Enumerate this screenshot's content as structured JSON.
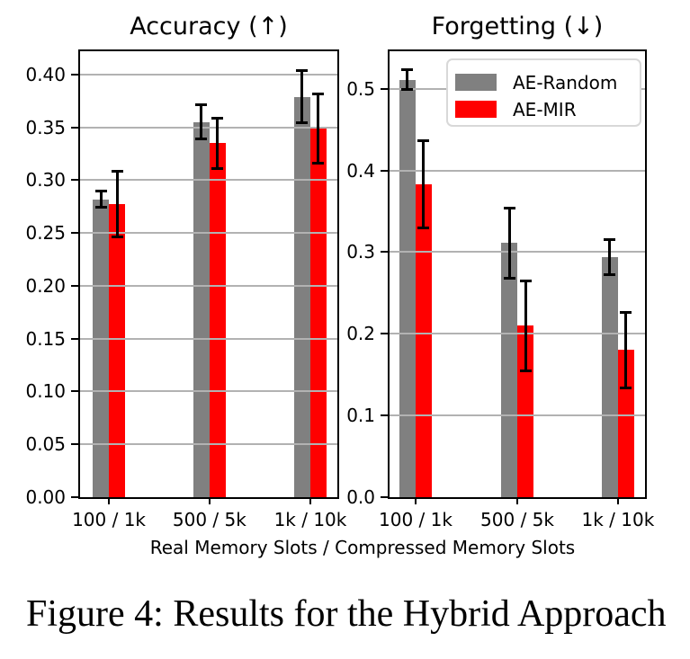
{
  "figure_caption": "Figure 4: Results for the Hybrid Approach",
  "xlabel": "Real Memory Slots / Compressed Memory Slots",
  "colors": {
    "ae_random": "#808080",
    "ae_mir": "#ff0000",
    "grid": "#b2b2b2",
    "error_bar": "#000000",
    "legend_border": "#d8d8d8"
  },
  "chart_data": [
    {
      "type": "bar",
      "title": "Accuracy (↑)",
      "categories": [
        "100 / 1k",
        "500 / 5k",
        "1k / 10k"
      ],
      "series": [
        {
          "name": "AE-Random",
          "color": "#808080",
          "values": [
            0.282,
            0.355,
            0.379
          ],
          "error": [
            0.008,
            0.016,
            0.025
          ]
        },
        {
          "name": "AE-MIR",
          "color": "#ff0000",
          "values": [
            0.277,
            0.335,
            0.349
          ],
          "error": [
            0.031,
            0.024,
            0.033
          ]
        }
      ],
      "ylim": [
        0,
        0.422
      ],
      "ytick_labels": [
        "0.00",
        "0.05",
        "0.10",
        "0.15",
        "0.20",
        "0.25",
        "0.30",
        "0.35",
        "0.40"
      ],
      "grid": true,
      "legend": null
    },
    {
      "type": "bar",
      "title": "Forgetting (↓)",
      "categories": [
        "100 / 1k",
        "500 / 5k",
        "1k / 10k"
      ],
      "series": [
        {
          "name": "AE-Random",
          "color": "#808080",
          "values": [
            0.511,
            0.311,
            0.294
          ],
          "error": [
            0.012,
            0.043,
            0.021
          ]
        },
        {
          "name": "AE-MIR",
          "color": "#ff0000",
          "values": [
            0.383,
            0.21,
            0.18
          ],
          "error": [
            0.053,
            0.055,
            0.046
          ]
        }
      ],
      "ylim": [
        0,
        0.546
      ],
      "ytick_labels": [
        "0.0",
        "0.1",
        "0.2",
        "0.3",
        "0.4",
        "0.5"
      ],
      "grid": true,
      "legend": {
        "position": "upper right",
        "entries": [
          "AE-Random",
          "AE-MIR"
        ]
      }
    }
  ]
}
